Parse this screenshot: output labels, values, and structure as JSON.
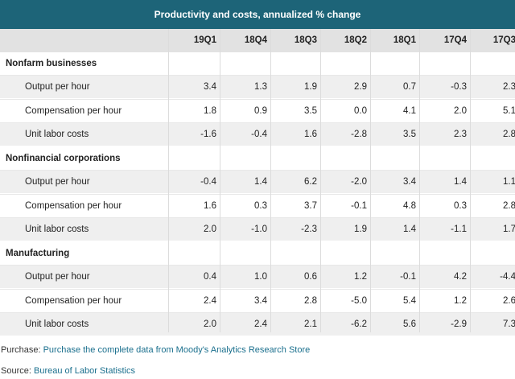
{
  "table": {
    "title": "Productivity and costs, annualized % change",
    "columns": [
      "19Q1",
      "18Q4",
      "18Q3",
      "18Q2",
      "18Q1",
      "17Q4",
      "17Q3"
    ],
    "sections": [
      {
        "name": "Nonfarm businesses",
        "rows": [
          {
            "label": "Output per hour",
            "values": [
              "3.4",
              "1.3",
              "1.9",
              "2.9",
              "0.7",
              "-0.3",
              "2.3"
            ]
          },
          {
            "label": "Compensation per hour",
            "values": [
              "1.8",
              "0.9",
              "3.5",
              "0.0",
              "4.1",
              "2.0",
              "5.1"
            ]
          },
          {
            "label": "Unit labor costs",
            "values": [
              "-1.6",
              "-0.4",
              "1.6",
              "-2.8",
              "3.5",
              "2.3",
              "2.8"
            ]
          }
        ]
      },
      {
        "name": "Nonfinancial corporations",
        "rows": [
          {
            "label": "Output per hour",
            "values": [
              "-0.4",
              "1.4",
              "6.2",
              "-2.0",
              "3.4",
              "1.4",
              "1.1"
            ]
          },
          {
            "label": "Compensation per hour",
            "values": [
              "1.6",
              "0.3",
              "3.7",
              "-0.1",
              "4.8",
              "0.3",
              "2.8"
            ]
          },
          {
            "label": "Unit labor costs",
            "values": [
              "2.0",
              "-1.0",
              "-2.3",
              "1.9",
              "1.4",
              "-1.1",
              "1.7"
            ]
          }
        ]
      },
      {
        "name": "Manufacturing",
        "rows": [
          {
            "label": "Output per hour",
            "values": [
              "0.4",
              "1.0",
              "0.6",
              "1.2",
              "-0.1",
              "4.2",
              "-4.4"
            ]
          },
          {
            "label": "Compensation per hour",
            "values": [
              "2.4",
              "3.4",
              "2.8",
              "-5.0",
              "5.4",
              "1.2",
              "2.6"
            ]
          },
          {
            "label": "Unit labor costs",
            "values": [
              "2.0",
              "2.4",
              "2.1",
              "-6.2",
              "5.6",
              "-2.9",
              "7.3"
            ]
          }
        ]
      }
    ]
  },
  "footer": {
    "purchase_label": "Purchase:",
    "purchase_link": "Purchase the complete data from Moody's Analytics Research Store",
    "source_label": "Source:",
    "source_link": "Bureau of Labor Statistics"
  },
  "colors": {
    "title_bg": "#1d6478",
    "header_bg": "#e2e2e2",
    "alt_row_bg": "#efefef",
    "link": "#1a6f8d"
  }
}
